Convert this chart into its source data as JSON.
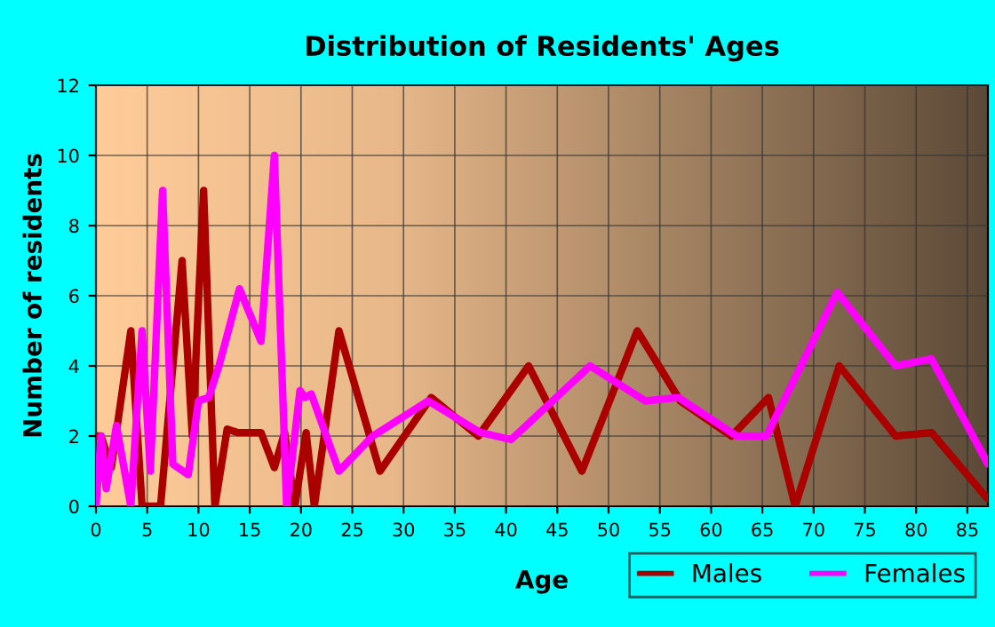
{
  "chart_data": {
    "type": "line",
    "title": "Distribution of Residents' Ages",
    "xlabel": "Age",
    "ylabel": "Number of residents",
    "series": [
      {
        "name": "Males",
        "color": "#aa0000",
        "x": [
          0,
          0.5,
          1.5,
          3.4,
          4.5,
          6.3,
          8.4,
          9.4,
          10.5,
          11.6,
          12.8,
          13.8,
          16.1,
          17.4,
          18.4,
          19.4,
          20.5,
          21.3,
          23.7,
          27.7,
          32.7,
          37.3,
          42.2,
          47.4,
          52.8,
          57,
          62,
          65.6,
          68.2,
          72.5,
          78,
          81.5,
          87
        ],
        "values": [
          2,
          2,
          1.1,
          5,
          0,
          0,
          7,
          2,
          9,
          0,
          2.2,
          2.1,
          2.1,
          1.1,
          2.1,
          0,
          2.1,
          0,
          5,
          1,
          3.1,
          2,
          4,
          1,
          5,
          3,
          2,
          3.1,
          0,
          4,
          2,
          2.1,
          0.2
        ]
      },
      {
        "name": "Females",
        "color": "#ff00ff",
        "x": [
          0,
          0.5,
          1,
          2,
          3.4,
          4.5,
          5.3,
          6.5,
          7.5,
          9,
          10,
          11,
          12,
          14,
          16.1,
          17.4,
          18.6,
          19.9,
          20.4,
          21,
          23.7,
          27,
          32.4,
          37.5,
          40.5,
          48.2,
          53.6,
          56.8,
          62.5,
          65.4,
          72.3,
          78,
          81.5,
          87
        ],
        "values": [
          0,
          2,
          0.5,
          2.3,
          0,
          5,
          1,
          9,
          1.2,
          0.9,
          3,
          3.1,
          4,
          6.2,
          4.7,
          10,
          0,
          3.3,
          3.1,
          3.2,
          1,
          2,
          3,
          2.1,
          1.9,
          4,
          3,
          3.1,
          2,
          2,
          6.1,
          4,
          4.2,
          1.2
        ]
      }
    ],
    "xlim": [
      0,
      87
    ],
    "xticks": [
      0,
      5,
      10,
      15,
      20,
      25,
      30,
      35,
      40,
      45,
      50,
      55,
      60,
      65,
      70,
      75,
      80,
      85
    ],
    "ylim": [
      0,
      12
    ],
    "yticks": [
      0,
      2,
      4,
      6,
      8,
      10,
      12
    ],
    "grid": true,
    "legend": "bottom right",
    "line_style": "solid"
  }
}
